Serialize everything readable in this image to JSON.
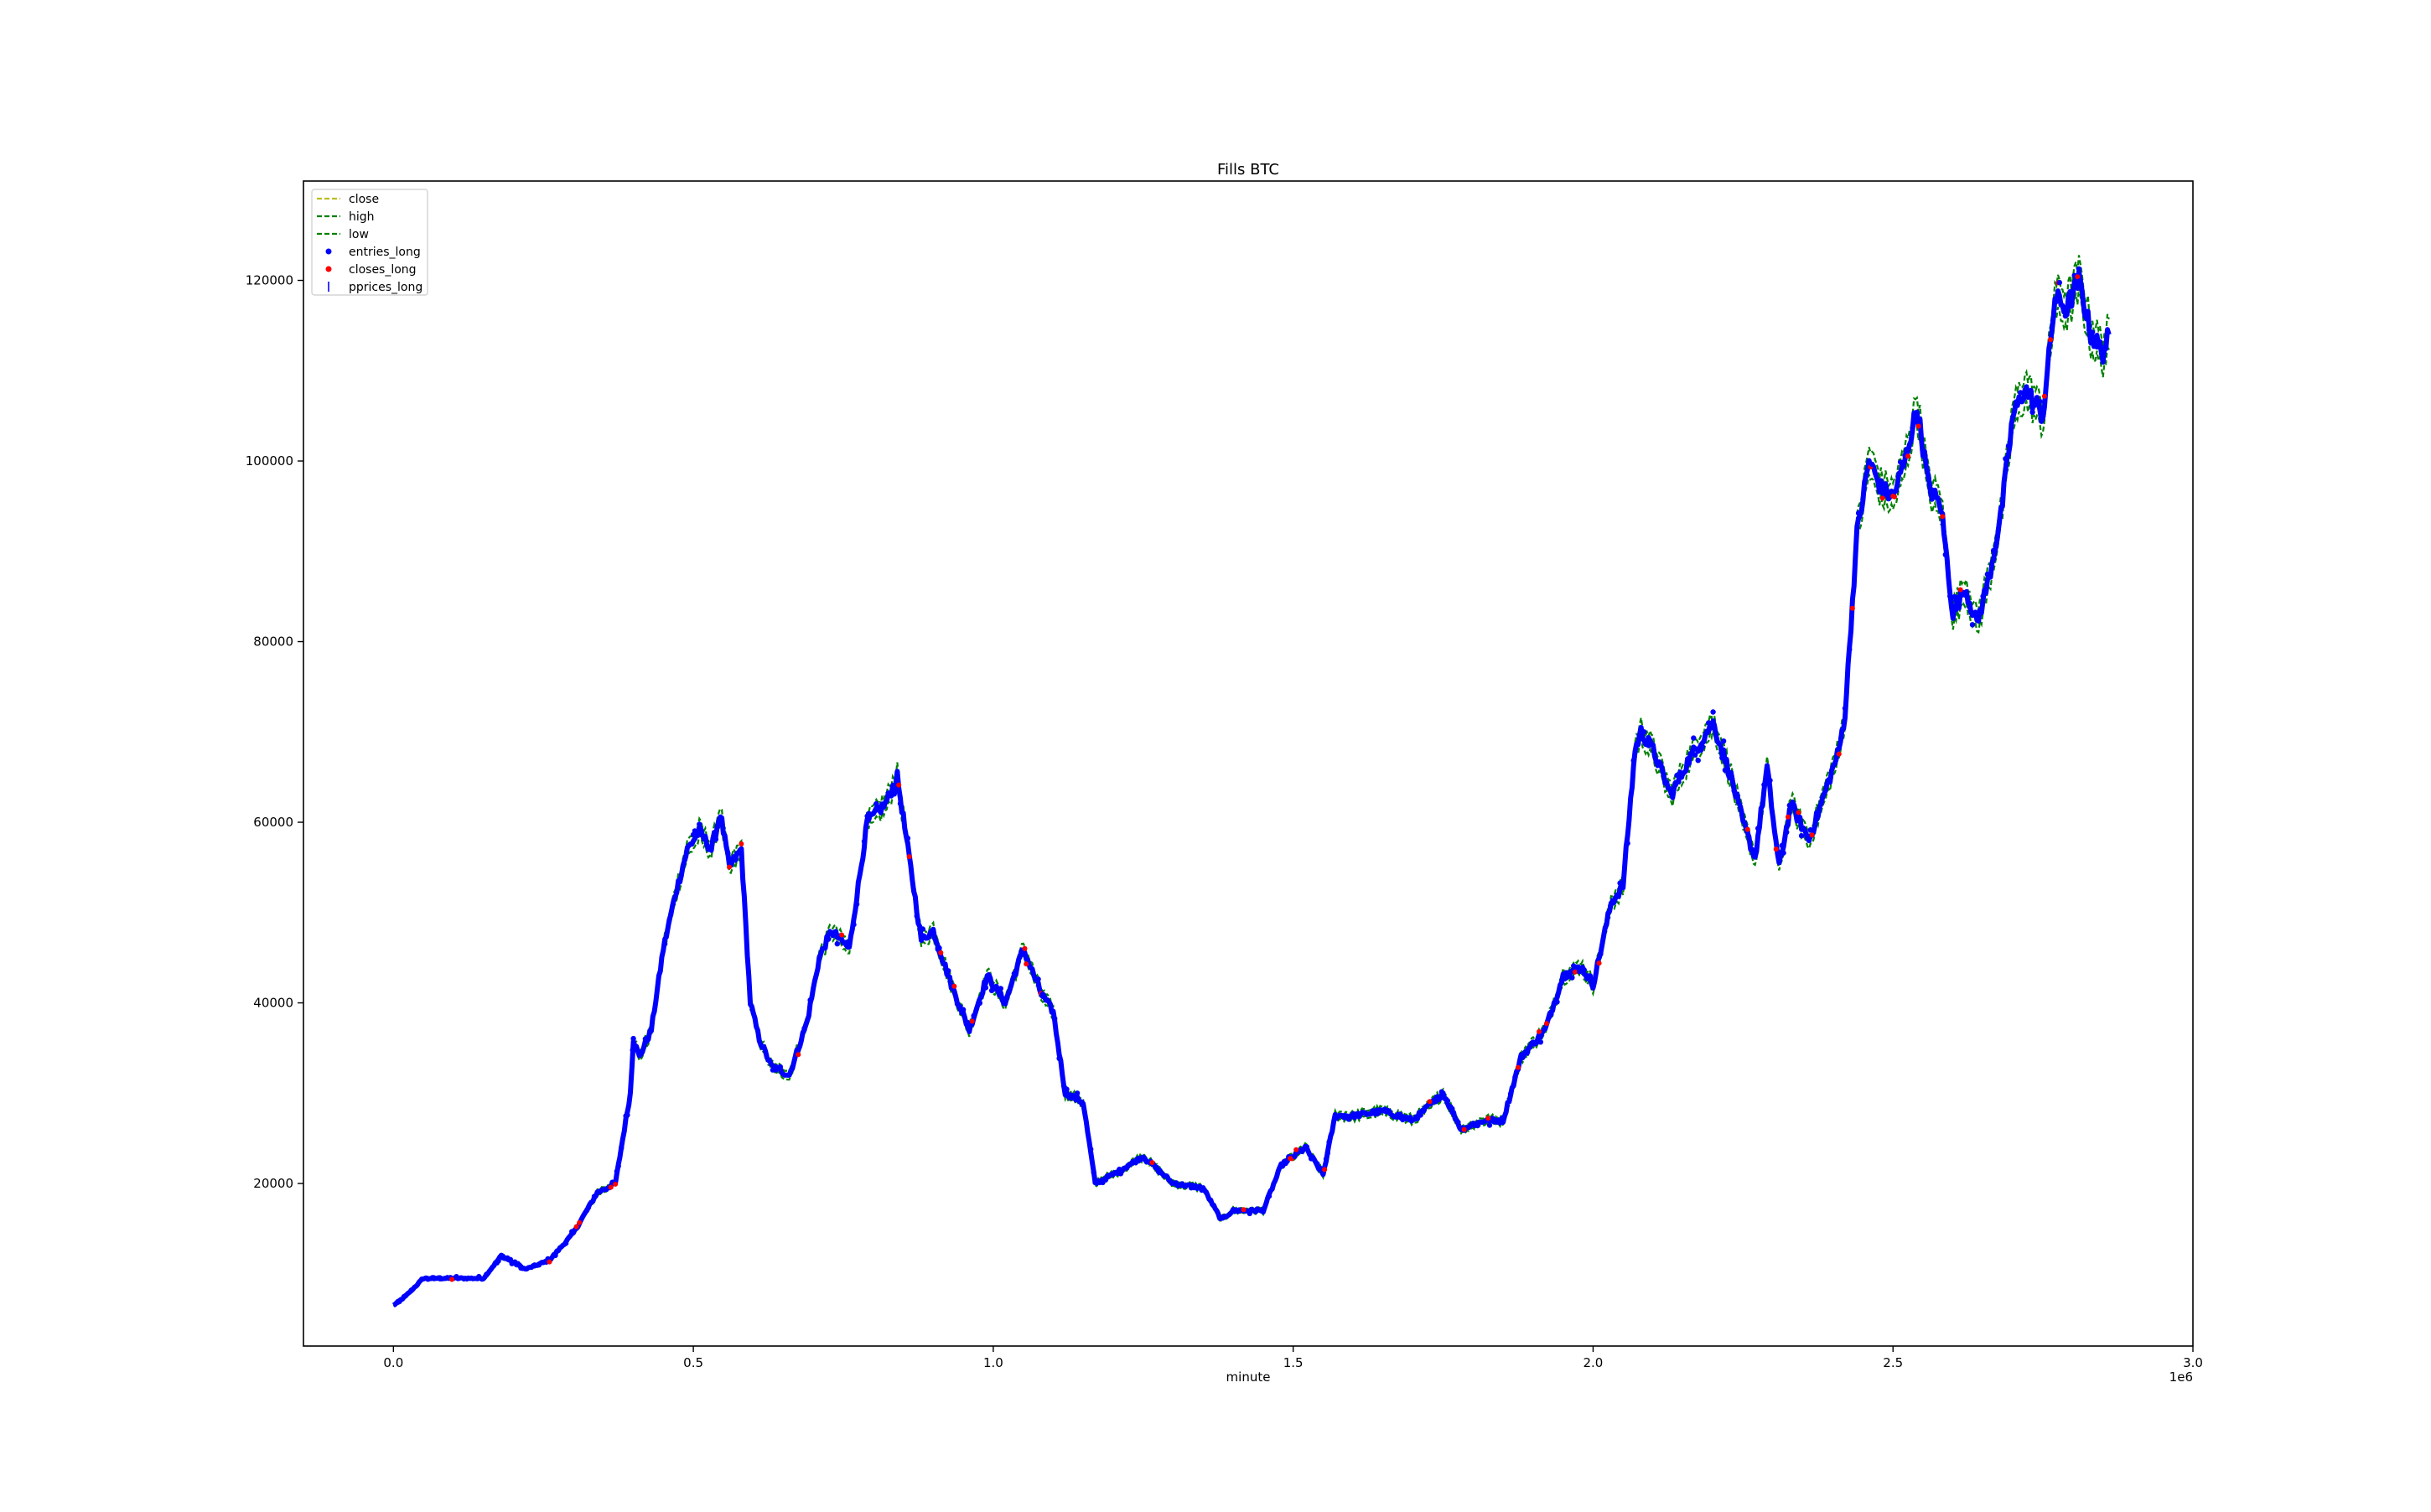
{
  "chart_data": {
    "type": "line",
    "title": "Fills BTC",
    "xlabel": "minute",
    "ylabel": "",
    "x_offset_text": "1e6",
    "xlim": [
      -150000,
      3000000
    ],
    "ylim": [
      2000,
      131000
    ],
    "x_ticks": [
      0,
      500000,
      1000000,
      1500000,
      2000000,
      2500000,
      3000000
    ],
    "x_tick_labels": [
      "0.0",
      "0.5",
      "1.0",
      "1.5",
      "2.0",
      "2.5",
      "3.0"
    ],
    "y_ticks": [
      20000,
      40000,
      60000,
      80000,
      100000,
      120000
    ],
    "y_tick_labels": [
      "20000",
      "40000",
      "60000",
      "80000",
      "100000",
      "120000"
    ],
    "grid": false,
    "legend_position": "upper left",
    "legend": [
      {
        "label": "close",
        "color": "#bcbd22",
        "style": "dashed-line"
      },
      {
        "label": "high",
        "color": "#008000",
        "style": "dashed-line"
      },
      {
        "label": "low",
        "color": "#008000",
        "style": "dashed-line"
      },
      {
        "label": "entries_long",
        "color": "#0000ff",
        "style": "dot"
      },
      {
        "label": "closes_long",
        "color": "#ff0000",
        "style": "dot"
      },
      {
        "label": "pprices_long",
        "color": "#0000ff",
        "style": "vline"
      }
    ],
    "series": [
      {
        "name": "close",
        "color": "#bcbd22",
        "x": [
          0,
          20000,
          50000,
          100000,
          150000,
          180000,
          220000,
          260000,
          300000,
          340000,
          370000,
          380000,
          395000,
          400000,
          410000,
          430000,
          450000,
          470000,
          490000,
          510000,
          530000,
          545000,
          560000,
          580000,
          595000,
          610000,
          630000,
          660000,
          690000,
          710000,
          730000,
          760000,
          790000,
          820000,
          840000,
          860000,
          880000,
          900000,
          930000,
          960000,
          990000,
          1020000,
          1050000,
          1080000,
          1100000,
          1120000,
          1150000,
          1170000,
          1200000,
          1250000,
          1300000,
          1350000,
          1380000,
          1400000,
          1450000,
          1480000,
          1500000,
          1520000,
          1550000,
          1570000,
          1600000,
          1650000,
          1700000,
          1750000,
          1780000,
          1820000,
          1850000,
          1880000,
          1920000,
          1950000,
          1980000,
          2000000,
          2030000,
          2050000,
          2070000,
          2080000,
          2100000,
          2130000,
          2160000,
          2180000,
          2200000,
          2230000,
          2250000,
          2270000,
          2290000,
          2310000,
          2330000,
          2360000,
          2390000,
          2410000,
          2420000,
          2440000,
          2460000,
          2480000,
          2500000,
          2520000,
          2540000,
          2560000,
          2580000,
          2600000,
          2620000,
          2640000,
          2660000,
          2680000,
          2700000,
          2720000,
          2750000,
          2770000,
          2790000,
          2810000,
          2830000,
          2850000,
          2860000
        ],
        "y": [
          6500,
          7500,
          9500,
          9500,
          9500,
          12000,
          10500,
          11500,
          14500,
          19000,
          20000,
          24000,
          30000,
          36000,
          34000,
          37000,
          46000,
          52000,
          57000,
          59000,
          57000,
          61000,
          55000,
          57000,
          40000,
          36000,
          33000,
          32000,
          38000,
          45000,
          48000,
          46000,
          60000,
          62000,
          65000,
          56000,
          47000,
          48000,
          42000,
          37000,
          43000,
          40000,
          46000,
          41000,
          39000,
          30000,
          29000,
          20000,
          21000,
          23000,
          20000,
          19500,
          16000,
          17000,
          17000,
          22000,
          23000,
          24000,
          21000,
          27500,
          27500,
          28000,
          27000,
          30000,
          26000,
          27000,
          27000,
          34000,
          37000,
          43000,
          44000,
          42000,
          51000,
          53000,
          68000,
          70000,
          68000,
          63000,
          67000,
          69000,
          71000,
          65000,
          60000,
          56000,
          66000,
          55000,
          62000,
          58000,
          64000,
          68000,
          72000,
          92000,
          100000,
          97000,
          96000,
          100000,
          106000,
          97000,
          95000,
          83000,
          86000,
          82000,
          87000,
          94000,
          105000,
          108000,
          105000,
          118000,
          117000,
          120000,
          114000,
          112000,
          114000
        ]
      }
    ]
  }
}
